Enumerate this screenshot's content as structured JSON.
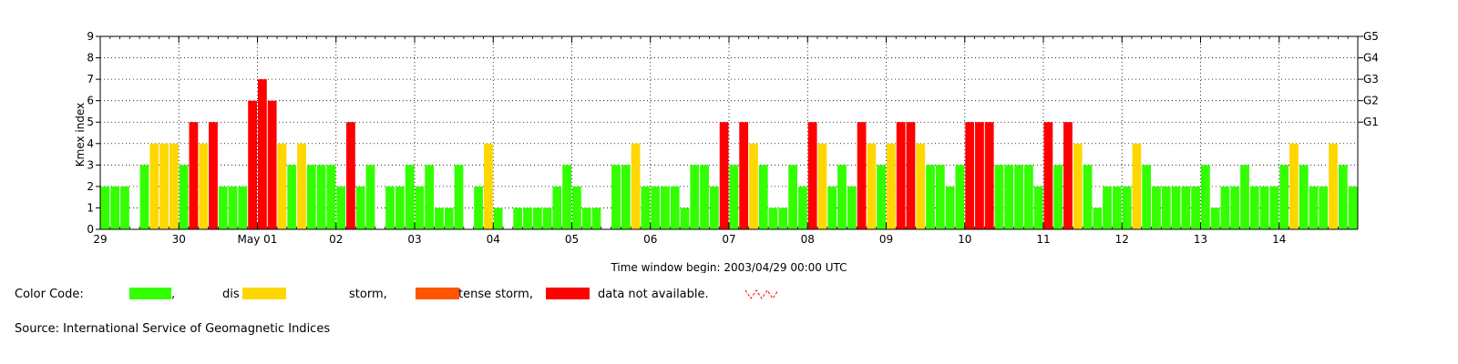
{
  "chart_data": {
    "type": "bar",
    "ylabel": "Kmex index",
    "xlabel": "Time window begin: 2003/04/29 00:00 UTC",
    "ylim": [
      0,
      9
    ],
    "yticks": [
      "0",
      "1",
      "2",
      "3",
      "4",
      "5",
      "6",
      "7",
      "8",
      "9"
    ],
    "right_axis": [
      {
        "value": 5,
        "label": "G1"
      },
      {
        "value": 6,
        "label": "G2"
      },
      {
        "value": 7,
        "label": "G3"
      },
      {
        "value": 8,
        "label": "G4"
      },
      {
        "value": 9,
        "label": "G5"
      }
    ],
    "day_labels": [
      "29",
      "30",
      "May 01",
      "02",
      "03",
      "04",
      "05",
      "06",
      "07",
      "08",
      "09",
      "10",
      "11",
      "12",
      "13",
      "14"
    ],
    "bins_per_day": 8,
    "grid": true,
    "colors": {
      "quiet": "#33ff00",
      "disturbed": "#ffd700",
      "storm": "#ff5500",
      "intense": "#ff0000"
    },
    "values": [
      2,
      2,
      2,
      0,
      3,
      4,
      4,
      4,
      3,
      5,
      4,
      5,
      2,
      2,
      2,
      6,
      7,
      6,
      4,
      3,
      4,
      3,
      3,
      3,
      2,
      5,
      2,
      3,
      0,
      2,
      2,
      3,
      2,
      3,
      1,
      1,
      3,
      0,
      2,
      4,
      1,
      0,
      1,
      1,
      1,
      1,
      2,
      3,
      2,
      1,
      1,
      0,
      3,
      3,
      4,
      2,
      2,
      2,
      2,
      1,
      3,
      3,
      2,
      5,
      3,
      5,
      4,
      3,
      1,
      1,
      3,
      2,
      5,
      4,
      2,
      3,
      2,
      5,
      4,
      3,
      4,
      5,
      5,
      4,
      3,
      3,
      2,
      3,
      5,
      5,
      5,
      3,
      3,
      3,
      3,
      2,
      5,
      3,
      5,
      4,
      3,
      1,
      2,
      2,
      2,
      4,
      3,
      2,
      2,
      2,
      2,
      2,
      3,
      1,
      2,
      2,
      3,
      2,
      2,
      2,
      3,
      4,
      3,
      2,
      2,
      4,
      3,
      2
    ]
  },
  "legend": {
    "title": "Color Code:",
    "items": [
      {
        "text": ",",
        "color": "#33ff00"
      },
      {
        "text": "dis",
        "color": "#ffd700"
      },
      {
        "text": "storm,",
        "color": "#ff5500"
      },
      {
        "text": "tense storm,",
        "color": "#ff0000"
      },
      {
        "text": "data not available.",
        "color": "#ff0000"
      }
    ]
  },
  "source": "Source: International Service of Geomagnetic Indices"
}
